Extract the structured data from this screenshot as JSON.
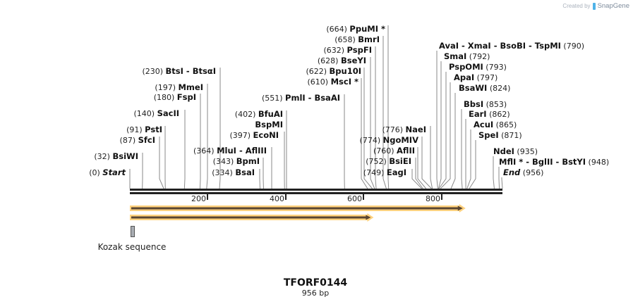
{
  "credit": {
    "prefix": "Created by",
    "brand": "SnapGene"
  },
  "sequence": {
    "name": "TFORF0144",
    "length_label": "956 bp",
    "length": 956
  },
  "axis": {
    "ticks": [
      {
        "label": "200",
        "bp": 200
      },
      {
        "label": "400",
        "bp": 400
      },
      {
        "label": "600",
        "bp": 600
      },
      {
        "label": "800",
        "bp": 800
      }
    ]
  },
  "features": [
    {
      "name": "ORF arrow 1",
      "start": 1,
      "end": 856,
      "color": "#ffd27f",
      "core": "#5a4632"
    },
    {
      "name": "ORF arrow 2",
      "start": 1,
      "end": 620,
      "color": "#ffd27f",
      "core": "#5a4632"
    },
    {
      "name": "Kozak sequence",
      "label": "Kozak sequence",
      "start": 1,
      "end": 10,
      "color": "#a9adb3"
    }
  ],
  "sites_left": [
    {
      "pos": "(0)",
      "name": "Start",
      "italic": true,
      "bp": 0
    },
    {
      "pos": "(32)",
      "name": "BsiWI",
      "bp": 32
    },
    {
      "pos": "(87)",
      "name": "SfcI",
      "bp": 87
    },
    {
      "pos": "(91)",
      "name": "PstI",
      "bp": 91
    },
    {
      "pos": "(140)",
      "name": "SacII",
      "bp": 140
    },
    {
      "pos": "(180)",
      "name": "FspI",
      "bp": 180
    },
    {
      "pos": "(197)",
      "name": "MmeI",
      "bp": 197
    },
    {
      "pos": "(230)",
      "name": "BtsI  -  BtsαI",
      "bp": 230
    },
    {
      "pos": "(334)",
      "name": "BsaI",
      "bp": 334
    },
    {
      "pos": "(343)",
      "name": "BpmI",
      "bp": 343
    },
    {
      "pos": "(364)",
      "name": "MluI  -  AflIII",
      "bp": 364
    },
    {
      "pos": "(397)",
      "name": "EcoNI",
      "bp": 397
    },
    {
      "pos": "",
      "name": "BspMI",
      "bp": 402
    },
    {
      "pos": "(402)",
      "name": "BfuAI",
      "bp": 402
    },
    {
      "pos": "(551)",
      "name": "PmlI  -  BsaAI",
      "bp": 551
    },
    {
      "pos": "(610)",
      "name": "MscI *",
      "bp": 610
    },
    {
      "pos": "(622)",
      "name": "Bpu10I",
      "bp": 622
    },
    {
      "pos": "(628)",
      "name": "BseYI",
      "bp": 628
    },
    {
      "pos": "(632)",
      "name": "PspFI",
      "bp": 632
    },
    {
      "pos": "(658)",
      "name": "BmrI",
      "bp": 658
    },
    {
      "pos": "(664)",
      "name": "PpuMI *",
      "bp": 664
    },
    {
      "pos": "(749)",
      "name": "EagI",
      "bp": 749
    },
    {
      "pos": "(752)",
      "name": "BsiEI",
      "bp": 752
    },
    {
      "pos": "(760)",
      "name": "AflII",
      "bp": 760
    },
    {
      "pos": "(774)",
      "name": "NgoMIV",
      "bp": 774
    },
    {
      "pos": "(776)",
      "name": "NaeI",
      "bp": 776
    }
  ],
  "sites_right": [
    {
      "name": "AvaI  -  XmaI  -  BsoBI  -  TspMI",
      "pos": "(790)",
      "bp": 790
    },
    {
      "name": "SmaI",
      "pos": "(792)",
      "bp": 792
    },
    {
      "name": "PspOMI",
      "pos": "(793)",
      "bp": 793
    },
    {
      "name": "ApaI",
      "pos": "(797)",
      "bp": 797
    },
    {
      "name": "BsaWI",
      "pos": "(824)",
      "bp": 824
    },
    {
      "name": "BbsI",
      "pos": "(853)",
      "bp": 853
    },
    {
      "name": "EarI",
      "pos": "(862)",
      "bp": 862
    },
    {
      "name": "AcuI",
      "pos": "(865)",
      "bp": 865
    },
    {
      "name": "SpeI",
      "pos": "(871)",
      "bp": 871
    },
    {
      "name": "NdeI",
      "pos": "(935)",
      "bp": 935
    },
    {
      "name": "MflI *  -  BglII  -  BstYI",
      "pos": "(948)",
      "bp": 948
    },
    {
      "name": "End",
      "pos": "(956)",
      "italic": true,
      "bp": 956
    }
  ]
}
